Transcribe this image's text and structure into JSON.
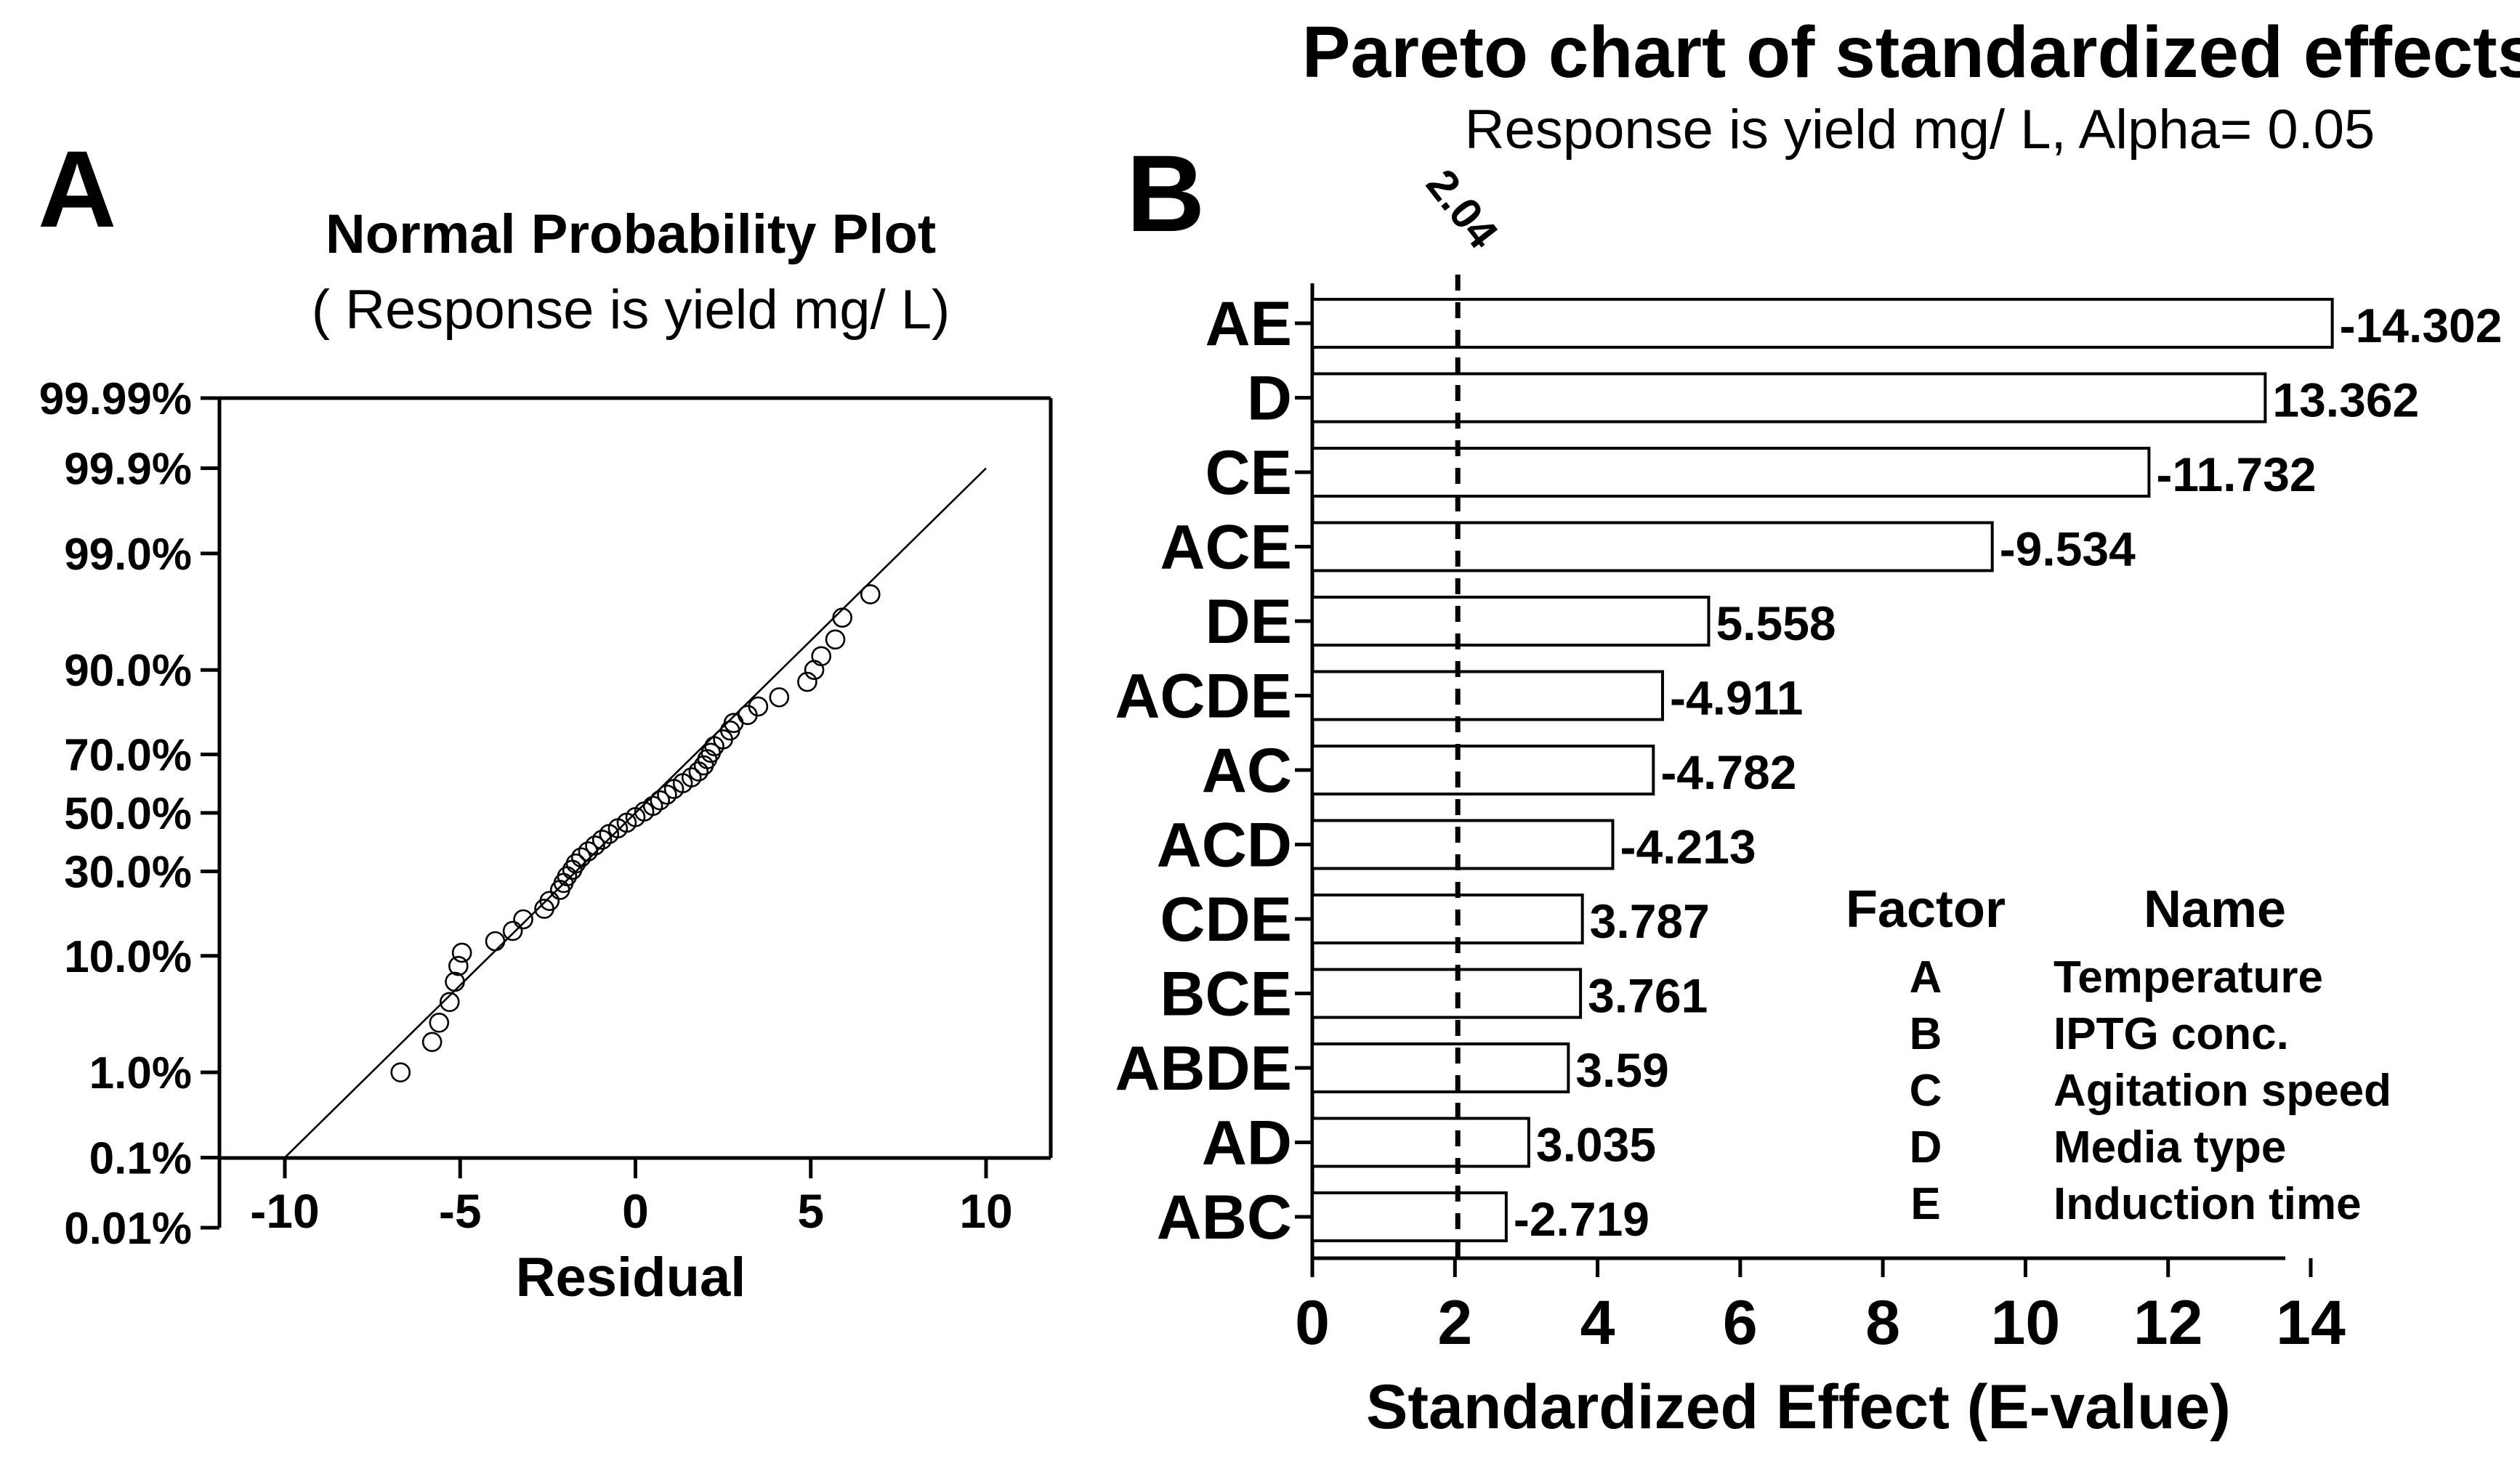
{
  "chart_data": [
    {
      "type": "scatter",
      "panel_label": "A",
      "title": "Normal Probability Plot",
      "subtitle": "( Response is yield mg/ L)",
      "xlabel": "Residual",
      "xlim": [
        -12,
        12
      ],
      "x_ticks": [
        "-10",
        "-5",
        "0",
        "5",
        "10"
      ],
      "x_tick_values": [
        -10,
        -5,
        0,
        5,
        10
      ],
      "y_ticks": [
        "99.99%",
        "99.9%",
        "99.0%",
        "90.0%",
        "70.0%",
        "50.0%",
        "30.0%",
        "10.0%",
        "1.0%",
        "0.1%",
        "0.01%"
      ],
      "y_tick_percent": [
        99.99,
        99.9,
        99.0,
        90.0,
        70.0,
        50.0,
        30.0,
        10.0,
        1.0,
        0.1,
        0.01
      ],
      "fit_line": {
        "x": [
          -10,
          10
        ],
        "percent": [
          0.1,
          99.9
        ]
      },
      "points": [
        [
          -6.7,
          1.0
        ],
        [
          -5.8,
          2.0
        ],
        [
          -5.6,
          3.0
        ],
        [
          -5.3,
          4.5
        ],
        [
          -5.15,
          6.5
        ],
        [
          -5.05,
          8.5
        ],
        [
          -4.95,
          10.5
        ],
        [
          -4.0,
          12.5
        ],
        [
          -3.5,
          14.5
        ],
        [
          -3.2,
          17.0
        ],
        [
          -2.6,
          19.5
        ],
        [
          -2.45,
          21.5
        ],
        [
          -2.15,
          24.5
        ],
        [
          -2.05,
          26.5
        ],
        [
          -1.95,
          28.5
        ],
        [
          -1.8,
          30.5
        ],
        [
          -1.7,
          32.5
        ],
        [
          -1.55,
          34.5
        ],
        [
          -1.35,
          36.5
        ],
        [
          -1.15,
          38.5
        ],
        [
          -0.95,
          40.5
        ],
        [
          -0.75,
          42.5
        ],
        [
          -0.5,
          44.5
        ],
        [
          -0.25,
          46.5
        ],
        [
          0.0,
          48.5
        ],
        [
          0.25,
          50.5
        ],
        [
          0.5,
          52.5
        ],
        [
          0.7,
          54.5
        ],
        [
          0.9,
          56.5
        ],
        [
          1.1,
          58.5
        ],
        [
          1.35,
          60.5
        ],
        [
          1.6,
          62.5
        ],
        [
          1.8,
          64.5
        ],
        [
          1.95,
          66.5
        ],
        [
          2.05,
          68.5
        ],
        [
          2.15,
          70.5
        ],
        [
          2.25,
          72.5
        ],
        [
          2.5,
          74.5
        ],
        [
          2.7,
          77.0
        ],
        [
          2.8,
          79.0
        ],
        [
          3.2,
          81.0
        ],
        [
          3.5,
          83.0
        ],
        [
          4.1,
          85.0
        ],
        [
          4.9,
          88.0
        ],
        [
          5.1,
          90.0
        ],
        [
          5.3,
          92.0
        ],
        [
          5.7,
          94.0
        ],
        [
          5.9,
          96.0
        ],
        [
          6.7,
          97.5
        ]
      ]
    },
    {
      "type": "bar",
      "orientation": "horizontal",
      "panel_label": "B",
      "title": "Pareto chart of standardized effects",
      "subtitle": "Response is yield mg/ L, Alpha= 0.05",
      "xlabel": "Standardized Effect (E-value)",
      "xlim": [
        0,
        15
      ],
      "x_ticks": [
        "0",
        "2",
        "4",
        "6",
        "8",
        "10",
        "12",
        "14"
      ],
      "x_tick_values": [
        0,
        2,
        4,
        6,
        8,
        10,
        12,
        14
      ],
      "reference_line": {
        "value": 2.04,
        "label": "2.04"
      },
      "categories": [
        "AE",
        "D",
        "CE",
        "ACE",
        "DE",
        "ACDE",
        "AC",
        "ACD",
        "CDE",
        "BCE",
        "ABDE",
        "AD",
        "ABC"
      ],
      "values": [
        14.302,
        13.362,
        11.732,
        9.534,
        5.558,
        4.911,
        4.782,
        4.213,
        3.787,
        3.761,
        3.59,
        3.035,
        2.719
      ],
      "value_labels": [
        "-14.302",
        "13.362",
        "-11.732",
        "-9.534",
        "5.558",
        "-4.911",
        "-4.782",
        "-4.213",
        "3.787",
        "3.761",
        "3.59",
        "3.035",
        "-2.719"
      ],
      "legend": {
        "header_factor": "Factor",
        "header_name": "Name",
        "entries": [
          {
            "factor": "A",
            "name": "Temperature"
          },
          {
            "factor": "B",
            "name": "IPTG conc."
          },
          {
            "factor": "C",
            "name": "Agitation speed"
          },
          {
            "factor": "D",
            "name": "Media type"
          },
          {
            "factor": "E",
            "name": "Induction time"
          }
        ]
      }
    }
  ]
}
